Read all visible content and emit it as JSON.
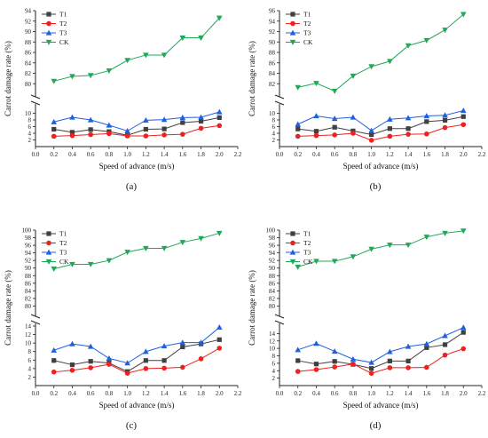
{
  "colors": {
    "T1": "#404040",
    "T2": "#ee2020",
    "T3": "#1f5fe0",
    "CK": "#20a858",
    "axis": "#222222"
  },
  "chart_data": [
    {
      "type": "line",
      "panel_label": "(a)",
      "xlabel": "Speed of advance (m/s)",
      "ylabel": "Carrot damage rate (%)",
      "xlim": [
        0.0,
        2.2
      ],
      "x_ticks": [
        "0.0",
        "0.2",
        "0.4",
        "0.6",
        "0.8",
        "1.0",
        "1.2",
        "1.4",
        "1.6",
        "1.8",
        "2.0",
        "2.2"
      ],
      "y_break": true,
      "y_lower": {
        "range": [
          0,
          12
        ],
        "ticks": [
          "2",
          "4",
          "6",
          "8",
          "10"
        ]
      },
      "y_upper": {
        "range": [
          78,
          94
        ],
        "ticks": [
          "80",
          "82",
          "84",
          "86",
          "88",
          "90",
          "92",
          "94"
        ]
      },
      "x": [
        0.2,
        0.4,
        0.6,
        0.8,
        1.0,
        1.2,
        1.4,
        1.6,
        1.8,
        2.0
      ],
      "legend_position": "top-left",
      "series": [
        {
          "name": "T1",
          "marker": "square",
          "values": [
            5.2,
            4.3,
            5.1,
            4.5,
            3.4,
            5.2,
            5.3,
            7.2,
            7.6,
            8.7
          ]
        },
        {
          "name": "T2",
          "marker": "circle",
          "values": [
            3.1,
            3.3,
            3.6,
            3.9,
            3.2,
            3.2,
            3.5,
            3.7,
            5.5,
            6.3
          ]
        },
        {
          "name": "T3",
          "marker": "triangle",
          "values": [
            7.4,
            8.8,
            8.0,
            6.4,
            4.7,
            7.9,
            8.1,
            8.7,
            8.8,
            10.4
          ]
        },
        {
          "name": "CK",
          "marker": "inv-triangle",
          "values": [
            80.5,
            81.4,
            81.6,
            82.5,
            84.5,
            85.5,
            85.5,
            88.8,
            88.8,
            92.6
          ]
        }
      ]
    },
    {
      "type": "line",
      "panel_label": "(b)",
      "xlabel": "Speed of advance (m/s)",
      "ylabel": "Carrot damage rate (%)",
      "xlim": [
        0.0,
        2.2
      ],
      "x_ticks": [
        "0.0",
        "0.2",
        "0.4",
        "0.6",
        "0.8",
        "1.0",
        "1.2",
        "1.4",
        "1.6",
        "1.8",
        "2.0",
        "2.2"
      ],
      "y_break": true,
      "y_lower": {
        "range": [
          0,
          12
        ],
        "ticks": [
          "2",
          "4",
          "6",
          "8",
          "10"
        ]
      },
      "y_upper": {
        "range": [
          80,
          96
        ],
        "ticks": [
          "82",
          "84",
          "86",
          "88",
          "90",
          "92",
          "94",
          "96"
        ]
      },
      "x": [
        0.2,
        0.4,
        0.6,
        0.8,
        1.0,
        1.2,
        1.4,
        1.6,
        1.8,
        2.0
      ],
      "legend_position": "top-left",
      "series": [
        {
          "name": "T1",
          "marker": "square",
          "values": [
            5.3,
            4.6,
            5.8,
            4.7,
            3.6,
            5.4,
            5.4,
            7.5,
            7.9,
            9.0
          ]
        },
        {
          "name": "T2",
          "marker": "circle",
          "values": [
            3.1,
            3.3,
            3.5,
            4.0,
            1.9,
            3.1,
            3.7,
            3.8,
            5.7,
            6.6
          ]
        },
        {
          "name": "T3",
          "marker": "triangle",
          "values": [
            6.7,
            9.2,
            8.4,
            8.8,
            4.8,
            8.2,
            8.6,
            9.2,
            9.4,
            10.8
          ]
        },
        {
          "name": "CK",
          "marker": "inv-triangle",
          "values": [
            81.3,
            82.1,
            80.6,
            83.5,
            85.3,
            86.3,
            89.3,
            90.3,
            92.3,
            95.3
          ]
        }
      ]
    },
    {
      "type": "line",
      "panel_label": "(c)",
      "xlabel": "Speed of advance (m/s)",
      "ylabel": "Carrot damage rate (%)",
      "xlim": [
        0.0,
        2.2
      ],
      "x_ticks": [
        "0.0",
        "0.2",
        "0.4",
        "0.6",
        "0.8",
        "1.0",
        "1.2",
        "1.4",
        "1.6",
        "1.8",
        "2.0",
        "2.2"
      ],
      "y_break": true,
      "y_lower": {
        "range": [
          0,
          14
        ],
        "ticks": [
          "2",
          "4",
          "6",
          "8",
          "10",
          "12",
          "14"
        ]
      },
      "y_upper": {
        "range": [
          78,
          100
        ],
        "ticks": [
          "80",
          "82",
          "84",
          "86",
          "88",
          "90",
          "92",
          "94",
          "96",
          "98",
          "100"
        ]
      },
      "x": [
        0.2,
        0.4,
        0.6,
        0.8,
        1.0,
        1.2,
        1.4,
        1.6,
        1.8,
        2.0
      ],
      "legend_position": "top-left",
      "series": [
        {
          "name": "T1",
          "marker": "square",
          "values": [
            5.9,
            4.9,
            5.7,
            5.3,
            3.3,
            5.9,
            5.9,
            9.1,
            9.8,
            10.8
          ]
        },
        {
          "name": "T2",
          "marker": "circle",
          "values": [
            3.2,
            3.6,
            4.2,
            5.0,
            2.9,
            4.0,
            4.1,
            4.3,
            6.3,
            8.8
          ]
        },
        {
          "name": "T3",
          "marker": "triangle",
          "values": [
            8.3,
            9.8,
            9.2,
            6.4,
            5.3,
            8.0,
            9.3,
            10.1,
            10.1,
            13.7
          ]
        },
        {
          "name": "CK",
          "marker": "inv-triangle",
          "values": [
            89.8,
            91.0,
            91.0,
            92.0,
            94.2,
            95.2,
            95.2,
            96.8,
            97.8,
            99.2
          ]
        }
      ]
    },
    {
      "type": "line",
      "panel_label": "(d)",
      "xlabel": "Speed of advance (m/s)",
      "ylabel": "Carrot damage rate (%)",
      "xlim": [
        0.0,
        2.2
      ],
      "x_ticks": [
        "0.0",
        "0.2",
        "0.4",
        "0.6",
        "0.8",
        "1.0",
        "1.2",
        "1.4",
        "1.6",
        "1.8",
        "2.0",
        "2.2"
      ],
      "y_break": true,
      "y_lower": {
        "range": [
          0,
          16
        ],
        "ticks": [
          "2",
          "4",
          "6",
          "8",
          "10",
          "12",
          "14"
        ]
      },
      "y_upper": {
        "range": [
          78,
          100
        ],
        "ticks": [
          "80",
          "82",
          "84",
          "86",
          "88",
          "90",
          "92",
          "94",
          "96",
          "98",
          "100"
        ]
      },
      "x": [
        0.2,
        0.4,
        0.6,
        0.8,
        1.0,
        1.2,
        1.4,
        1.6,
        1.8,
        2.0
      ],
      "legend_position": "top-left",
      "series": [
        {
          "name": "T1",
          "marker": "square",
          "values": [
            6.7,
            5.8,
            6.5,
            5.7,
            4.6,
            6.6,
            6.6,
            10.2,
            11.0,
            14.3
          ]
        },
        {
          "name": "T2",
          "marker": "circle",
          "values": [
            3.8,
            4.3,
            5.0,
            5.8,
            3.3,
            4.8,
            4.8,
            4.9,
            8.2,
            9.9
          ]
        },
        {
          "name": "T3",
          "marker": "triangle",
          "values": [
            9.6,
            11.3,
            9.2,
            7.1,
            6.2,
            9.1,
            10.5,
            11.2,
            13.4,
            15.6
          ]
        },
        {
          "name": "CK",
          "marker": "inv-triangle",
          "values": [
            90.3,
            91.8,
            91.8,
            93.0,
            95.0,
            96.1,
            96.1,
            98.2,
            99.2,
            99.8
          ]
        }
      ]
    }
  ]
}
